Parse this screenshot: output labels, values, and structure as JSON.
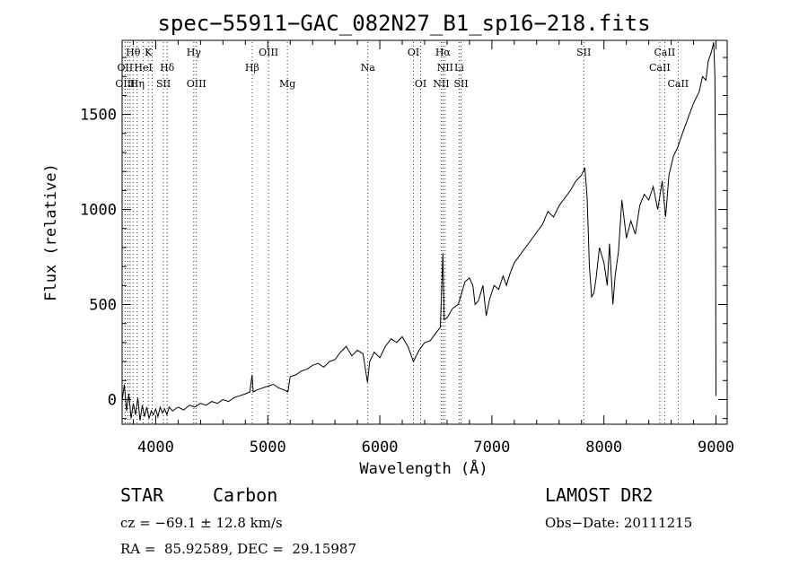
{
  "info": {
    "object_class": "STAR",
    "subclass": "Carbon",
    "survey": "LAMOST DR2",
    "cz": "cz = −69.1 ± 12.8 km/s",
    "obs_date": "Obs−Date: 20111215",
    "coords": "RA =  85.92589, DEC =  29.15987"
  },
  "chart_data": {
    "type": "line",
    "title": "spec−55911−GAC_082N27_B1_sp16−218.fits",
    "xlabel": "Wavelength (Å)",
    "ylabel": "Flux (relative)",
    "xlim": [
      3700,
      9100
    ],
    "ylim": [
      -130,
      1890
    ],
    "x_ticks": [
      4000,
      5000,
      6000,
      7000,
      8000,
      9000
    ],
    "y_ticks": [
      0,
      500,
      1000,
      1500
    ],
    "grid": false,
    "series": [
      {
        "points": [
          [
            3700,
            -10
          ],
          [
            3720,
            80
          ],
          [
            3740,
            -60
          ],
          [
            3760,
            30
          ],
          [
            3780,
            -100
          ],
          [
            3800,
            -20
          ],
          [
            3820,
            -80
          ],
          [
            3840,
            10
          ],
          [
            3860,
            -110
          ],
          [
            3880,
            -30
          ],
          [
            3900,
            -90
          ],
          [
            3920,
            -40
          ],
          [
            3940,
            -100
          ],
          [
            3960,
            -60
          ],
          [
            3980,
            -80
          ],
          [
            4000,
            -50
          ],
          [
            4020,
            -90
          ],
          [
            4040,
            -40
          ],
          [
            4060,
            -70
          ],
          [
            4080,
            -50
          ],
          [
            4100,
            -80
          ],
          [
            4120,
            -40
          ],
          [
            4150,
            -60
          ],
          [
            4200,
            -40
          ],
          [
            4250,
            -55
          ],
          [
            4300,
            -30
          ],
          [
            4350,
            -40
          ],
          [
            4400,
            -20
          ],
          [
            4450,
            -30
          ],
          [
            4500,
            -10
          ],
          [
            4550,
            -20
          ],
          [
            4600,
            0
          ],
          [
            4650,
            -10
          ],
          [
            4700,
            10
          ],
          [
            4750,
            20
          ],
          [
            4800,
            30
          ],
          [
            4840,
            40
          ],
          [
            4860,
            130
          ],
          [
            4870,
            40
          ],
          [
            4900,
            50
          ],
          [
            4950,
            60
          ],
          [
            5000,
            70
          ],
          [
            5050,
            80
          ],
          [
            5100,
            60
          ],
          [
            5150,
            50
          ],
          [
            5180,
            40
          ],
          [
            5200,
            120
          ],
          [
            5250,
            130
          ],
          [
            5300,
            150
          ],
          [
            5350,
            160
          ],
          [
            5400,
            180
          ],
          [
            5450,
            190
          ],
          [
            5500,
            170
          ],
          [
            5550,
            200
          ],
          [
            5600,
            210
          ],
          [
            5650,
            250
          ],
          [
            5700,
            280
          ],
          [
            5750,
            230
          ],
          [
            5800,
            260
          ],
          [
            5850,
            240
          ],
          [
            5890,
            90
          ],
          [
            5910,
            200
          ],
          [
            5950,
            250
          ],
          [
            6000,
            220
          ],
          [
            6050,
            280
          ],
          [
            6100,
            320
          ],
          [
            6150,
            300
          ],
          [
            6200,
            330
          ],
          [
            6250,
            280
          ],
          [
            6300,
            200
          ],
          [
            6350,
            260
          ],
          [
            6400,
            300
          ],
          [
            6450,
            310
          ],
          [
            6500,
            350
          ],
          [
            6540,
            380
          ],
          [
            6563,
            770
          ],
          [
            6575,
            420
          ],
          [
            6600,
            430
          ],
          [
            6650,
            480
          ],
          [
            6700,
            500
          ],
          [
            6730,
            560
          ],
          [
            6760,
            620
          ],
          [
            6800,
            640
          ],
          [
            6830,
            600
          ],
          [
            6850,
            500
          ],
          [
            6880,
            520
          ],
          [
            6920,
            600
          ],
          [
            6950,
            440
          ],
          [
            6980,
            530
          ],
          [
            7020,
            600
          ],
          [
            7060,
            580
          ],
          [
            7100,
            650
          ],
          [
            7130,
            600
          ],
          [
            7160,
            660
          ],
          [
            7200,
            720
          ],
          [
            7250,
            760
          ],
          [
            7300,
            800
          ],
          [
            7350,
            840
          ],
          [
            7400,
            880
          ],
          [
            7450,
            920
          ],
          [
            7500,
            990
          ],
          [
            7550,
            960
          ],
          [
            7600,
            1020
          ],
          [
            7650,
            1060
          ],
          [
            7700,
            1100
          ],
          [
            7750,
            1150
          ],
          [
            7800,
            1180
          ],
          [
            7830,
            1220
          ],
          [
            7850,
            1060
          ],
          [
            7870,
            700
          ],
          [
            7890,
            540
          ],
          [
            7910,
            560
          ],
          [
            7930,
            640
          ],
          [
            7960,
            800
          ],
          [
            8000,
            720
          ],
          [
            8030,
            600
          ],
          [
            8050,
            820
          ],
          [
            8080,
            500
          ],
          [
            8100,
            650
          ],
          [
            8130,
            780
          ],
          [
            8160,
            1050
          ],
          [
            8200,
            850
          ],
          [
            8240,
            940
          ],
          [
            8280,
            870
          ],
          [
            8320,
            1020
          ],
          [
            8360,
            1080
          ],
          [
            8400,
            1050
          ],
          [
            8440,
            1120
          ],
          [
            8480,
            1000
          ],
          [
            8520,
            1150
          ],
          [
            8550,
            960
          ],
          [
            8580,
            1180
          ],
          [
            8620,
            1280
          ],
          [
            8660,
            1330
          ],
          [
            8700,
            1400
          ],
          [
            8750,
            1480
          ],
          [
            8800,
            1560
          ],
          [
            8850,
            1620
          ],
          [
            8880,
            1700
          ],
          [
            8910,
            1680
          ],
          [
            8930,
            1780
          ],
          [
            8960,
            1830
          ],
          [
            8980,
            1880
          ],
          [
            8990,
            1700
          ],
          [
            8995,
            1200
          ],
          [
            9000,
            20
          ]
        ]
      }
    ],
    "line_ids": [
      {
        "label": "Hθ",
        "wl": 3798,
        "row": 1
      },
      {
        "label": "K",
        "wl": 3934,
        "row": 1
      },
      {
        "label": "OII",
        "wl": 3727,
        "row": 2
      },
      {
        "label": "HeI",
        "wl": 3889,
        "row": 2
      },
      {
        "label": "Hδ",
        "wl": 4102,
        "row": 2
      },
      {
        "label": "OIII",
        "wl": 3727,
        "row": 3
      },
      {
        "label": "Hη",
        "wl": 3835,
        "row": 3
      },
      {
        "label": "SII",
        "wl": 4069,
        "row": 3
      },
      {
        "label": "Hγ",
        "wl": 4340,
        "row": 1
      },
      {
        "label": "OIII",
        "wl": 4363,
        "row": 3
      },
      {
        "label": "OIII",
        "wl": 5007,
        "row": 1
      },
      {
        "label": "Hβ",
        "wl": 4861,
        "row": 2
      },
      {
        "label": "Mg",
        "wl": 5175,
        "row": 3
      },
      {
        "label": "Na",
        "wl": 5893,
        "row": 2
      },
      {
        "label": "OI",
        "wl": 6300,
        "row": 1
      },
      {
        "label": "OI",
        "wl": 6364,
        "row": 3
      },
      {
        "label": "Hα",
        "wl": 6563,
        "row": 1
      },
      {
        "label": "NII",
        "wl": 6583,
        "row": 2
      },
      {
        "label": "Li",
        "wl": 6708,
        "row": 2
      },
      {
        "label": "NII",
        "wl": 6548,
        "row": 3
      },
      {
        "label": "SII",
        "wl": 6725,
        "row": 3
      },
      {
        "label": "SII",
        "wl": 7820,
        "row": 1
      },
      {
        "label": "CaII",
        "wl": 8542,
        "row": 1
      },
      {
        "label": "CaII",
        "wl": 8498,
        "row": 2
      },
      {
        "label": "CaII",
        "wl": 8662,
        "row": 3
      }
    ],
    "marker_lines": [
      3727,
      3750,
      3771,
      3798,
      3835,
      3889,
      3934,
      3969,
      4069,
      4102,
      4340,
      4363,
      4861,
      5007,
      5175,
      5893,
      6300,
      6364,
      6548,
      6563,
      6583,
      6708,
      6725,
      7820,
      8498,
      8542,
      8662
    ]
  }
}
